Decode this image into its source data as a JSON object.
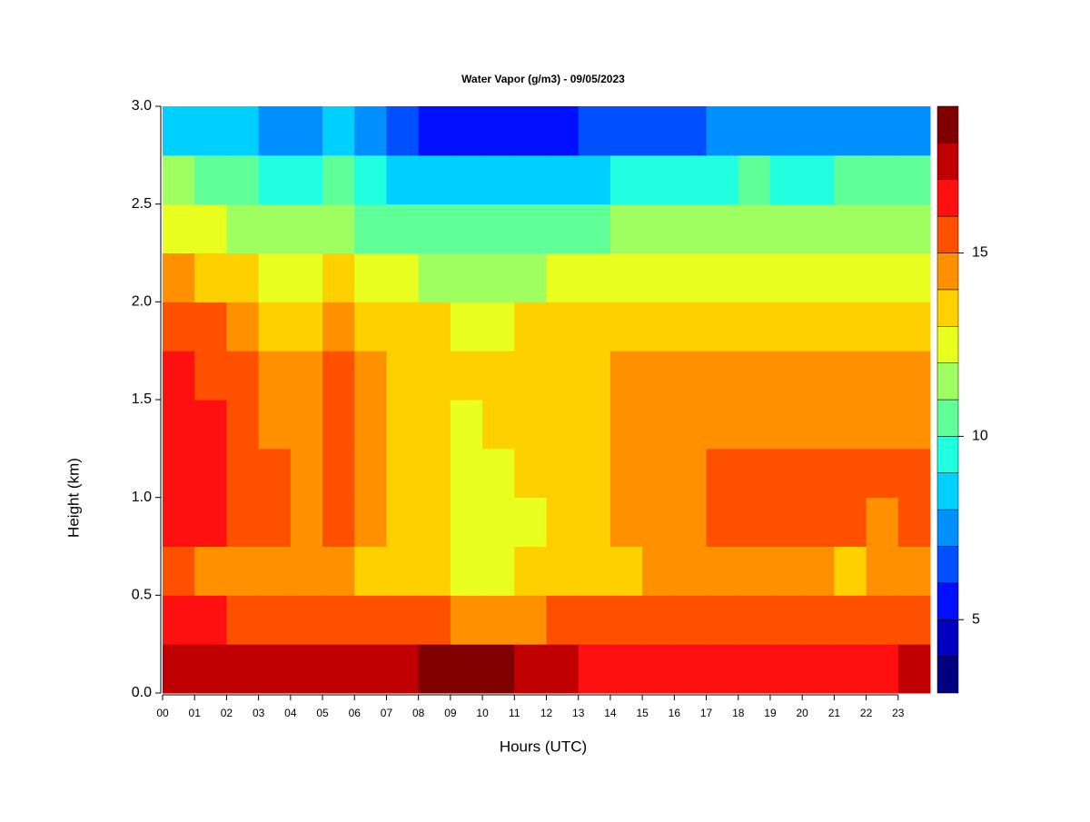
{
  "chart_data": {
    "type": "heatmap",
    "title": "Water Vapor (g/m3) - 09/05/2023",
    "x_label": "Hours (UTC)",
    "y_label": "Height (km)",
    "xlim": [
      0,
      24
    ],
    "ylim": [
      0,
      3
    ],
    "xticks": [
      {
        "value": 0,
        "label": "00"
      },
      {
        "value": 1,
        "label": "01"
      },
      {
        "value": 2,
        "label": "02"
      },
      {
        "value": 3,
        "label": "03"
      },
      {
        "value": 4,
        "label": "04"
      },
      {
        "value": 5,
        "label": "05"
      },
      {
        "value": 6,
        "label": "06"
      },
      {
        "value": 7,
        "label": "07"
      },
      {
        "value": 8,
        "label": "08"
      },
      {
        "value": 9,
        "label": "09"
      },
      10,
      11,
      12,
      13,
      14,
      15,
      16,
      17,
      18,
      19,
      20,
      21,
      22,
      23
    ],
    "yticks": [
      {
        "value": 0,
        "label": "0.0"
      },
      0.5,
      {
        "value": 1,
        "label": "1.0"
      },
      1.5,
      {
        "value": 2,
        "label": "2.0"
      },
      2.5,
      {
        "value": 3,
        "label": "3.0"
      }
    ],
    "x_bins": [
      0,
      1,
      2,
      3,
      4,
      5,
      6,
      7,
      8,
      9,
      10,
      11,
      12,
      13,
      14,
      15,
      16,
      17,
      18,
      19,
      20,
      21,
      22,
      23,
      24
    ],
    "y_bins": [
      0,
      0.25,
      0.5,
      0.75,
      1,
      1.25,
      1.5,
      1.75,
      2,
      2.25,
      2.5,
      2.75,
      3
    ],
    "z": [
      [
        17.6,
        17.8,
        17.3,
        17.2,
        17.3,
        17.5,
        17.4,
        17.6,
        18.1,
        18.2,
        18.1,
        17.8,
        17.2,
        16.5,
        16.4,
        16.6,
        16.2,
        16.5,
        16.4,
        16.6,
        16.5,
        16.4,
        16.8,
        17.3
      ],
      [
        16.2,
        16.0,
        15.6,
        15.5,
        15.4,
        15.8,
        15.4,
        15.2,
        15.0,
        14.8,
        14.8,
        14.9,
        15.1,
        15.2,
        15.4,
        15.3,
        15.6,
        15.8,
        15.7,
        15.5,
        15.4,
        15.3,
        15.2,
        15.3
      ],
      [
        15.0,
        14.8,
        14.5,
        14.2,
        14.0,
        14.6,
        13.8,
        13.5,
        13.2,
        12.8,
        12.7,
        13.0,
        13.4,
        13.6,
        13.8,
        14.0,
        14.3,
        14.6,
        14.5,
        14.2,
        14.1,
        13.8,
        14.0,
        14.1
      ],
      [
        16.5,
        16.0,
        15.2,
        15.0,
        14.6,
        15.5,
        14.2,
        13.6,
        13.0,
        12.4,
        12.3,
        12.8,
        13.2,
        13.8,
        14.2,
        14.5,
        14.8,
        15.3,
        15.2,
        15.0,
        15.1,
        15.0,
        14.9,
        15.0
      ],
      [
        16.8,
        16.2,
        15.3,
        15.1,
        14.7,
        15.6,
        14.3,
        13.7,
        13.1,
        12.5,
        12.4,
        13.0,
        13.3,
        13.9,
        14.3,
        14.6,
        14.9,
        15.4,
        15.3,
        15.1,
        15.2,
        15.1,
        15.0,
        15.1
      ],
      [
        16.6,
        16.0,
        15.1,
        14.9,
        14.5,
        15.4,
        14.0,
        13.6,
        13.2,
        12.8,
        13.0,
        13.3,
        13.4,
        13.8,
        14.2,
        14.5,
        14.7,
        14.9,
        14.8,
        14.6,
        14.7,
        14.8,
        14.6,
        14.8
      ],
      [
        16.4,
        15.8,
        15.0,
        14.6,
        14.2,
        15.3,
        14.0,
        13.7,
        13.3,
        13.1,
        13.2,
        13.3,
        13.4,
        13.7,
        14.0,
        14.3,
        14.4,
        14.6,
        14.4,
        14.3,
        14.4,
        14.5,
        14.6,
        14.9
      ],
      [
        15.8,
        15.0,
        14.0,
        13.8,
        13.7,
        14.5,
        13.4,
        13.2,
        13.0,
        12.8,
        12.9,
        13.0,
        13.1,
        13.3,
        13.5,
        13.6,
        13.8,
        13.9,
        13.8,
        13.8,
        13.9,
        13.8,
        13.7,
        13.8
      ],
      [
        14.5,
        13.8,
        13.0,
        12.8,
        12.6,
        13.4,
        12.3,
        12.0,
        11.8,
        11.6,
        11.7,
        11.8,
        12.0,
        12.3,
        12.5,
        12.6,
        12.8,
        12.9,
        12.9,
        12.8,
        12.8,
        12.9,
        12.8,
        12.9
      ],
      [
        12.5,
        12.0,
        11.6,
        11.4,
        11.2,
        11.8,
        10.8,
        10.4,
        10.2,
        10.0,
        10.1,
        10.0,
        10.3,
        10.6,
        11.0,
        11.2,
        11.5,
        11.7,
        11.8,
        11.7,
        11.6,
        11.8,
        11.7,
        11.8
      ],
      [
        11.0,
        10.4,
        10.0,
        9.8,
        9.6,
        10.2,
        9.0,
        8.5,
        8.2,
        8.0,
        8.1,
        8.2,
        8.4,
        8.7,
        9.0,
        9.3,
        9.6,
        9.9,
        10.0,
        9.9,
        9.8,
        10.0,
        10.1,
        10.2
      ],
      [
        8.8,
        8.4,
        8.0,
        7.8,
        7.6,
        8.2,
        7.0,
        6.2,
        5.6,
        5.4,
        5.5,
        5.6,
        5.8,
        6.0,
        6.4,
        6.6,
        6.9,
        7.1,
        7.2,
        7.3,
        7.2,
        7.4,
        7.6,
        7.8
      ]
    ],
    "colorbar": {
      "levels": [
        3,
        4,
        5,
        6,
        7,
        8,
        9,
        10,
        11,
        12,
        13,
        14,
        15,
        16,
        17,
        18,
        19
      ],
      "colors": [
        "#000080",
        "#0000c0",
        "#0010ff",
        "#0050ff",
        "#0090ff",
        "#00d0ff",
        "#20ffe0",
        "#60ff98",
        "#a0ff60",
        "#e8ff20",
        "#ffd000",
        "#ff9000",
        "#ff5000",
        "#ff1010",
        "#c00000",
        "#800000"
      ],
      "ticks": [
        5,
        10,
        15
      ]
    }
  }
}
